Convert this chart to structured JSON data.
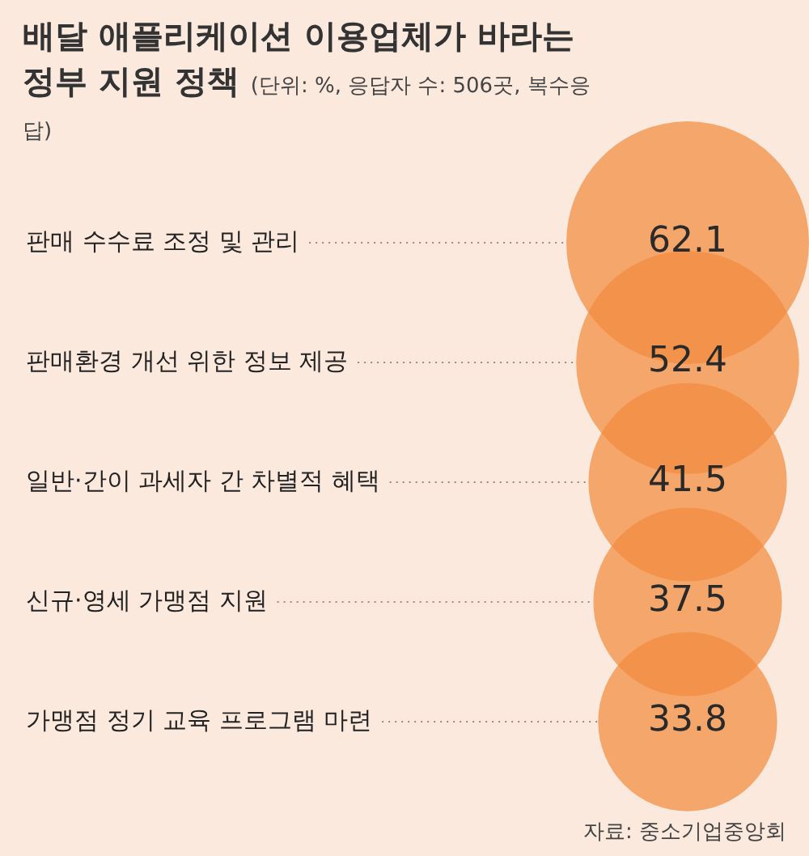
{
  "chart_data": {
    "type": "other",
    "title": "배달 애플리케이션 이용업체가 바라는 정부 지원 정책",
    "subtitle": "(단위: %, 응답자 수: 506곳, 복수응답)",
    "categories": [
      "판매 수수료 조정 및 관리",
      "판매환경 개선 위한 정보 제공",
      "일반·간이 과세자 간 차별적 혜택",
      "신규·영세 가맹점 지원",
      "가맹점 정기 교육 프로그램 마련"
    ],
    "values": [
      62.1,
      52.4,
      41.5,
      37.5,
      33.8
    ],
    "color": "#f28c3e",
    "data_labels": true,
    "annotations": [
      "자료: 중소기업중앙회"
    ]
  }
}
